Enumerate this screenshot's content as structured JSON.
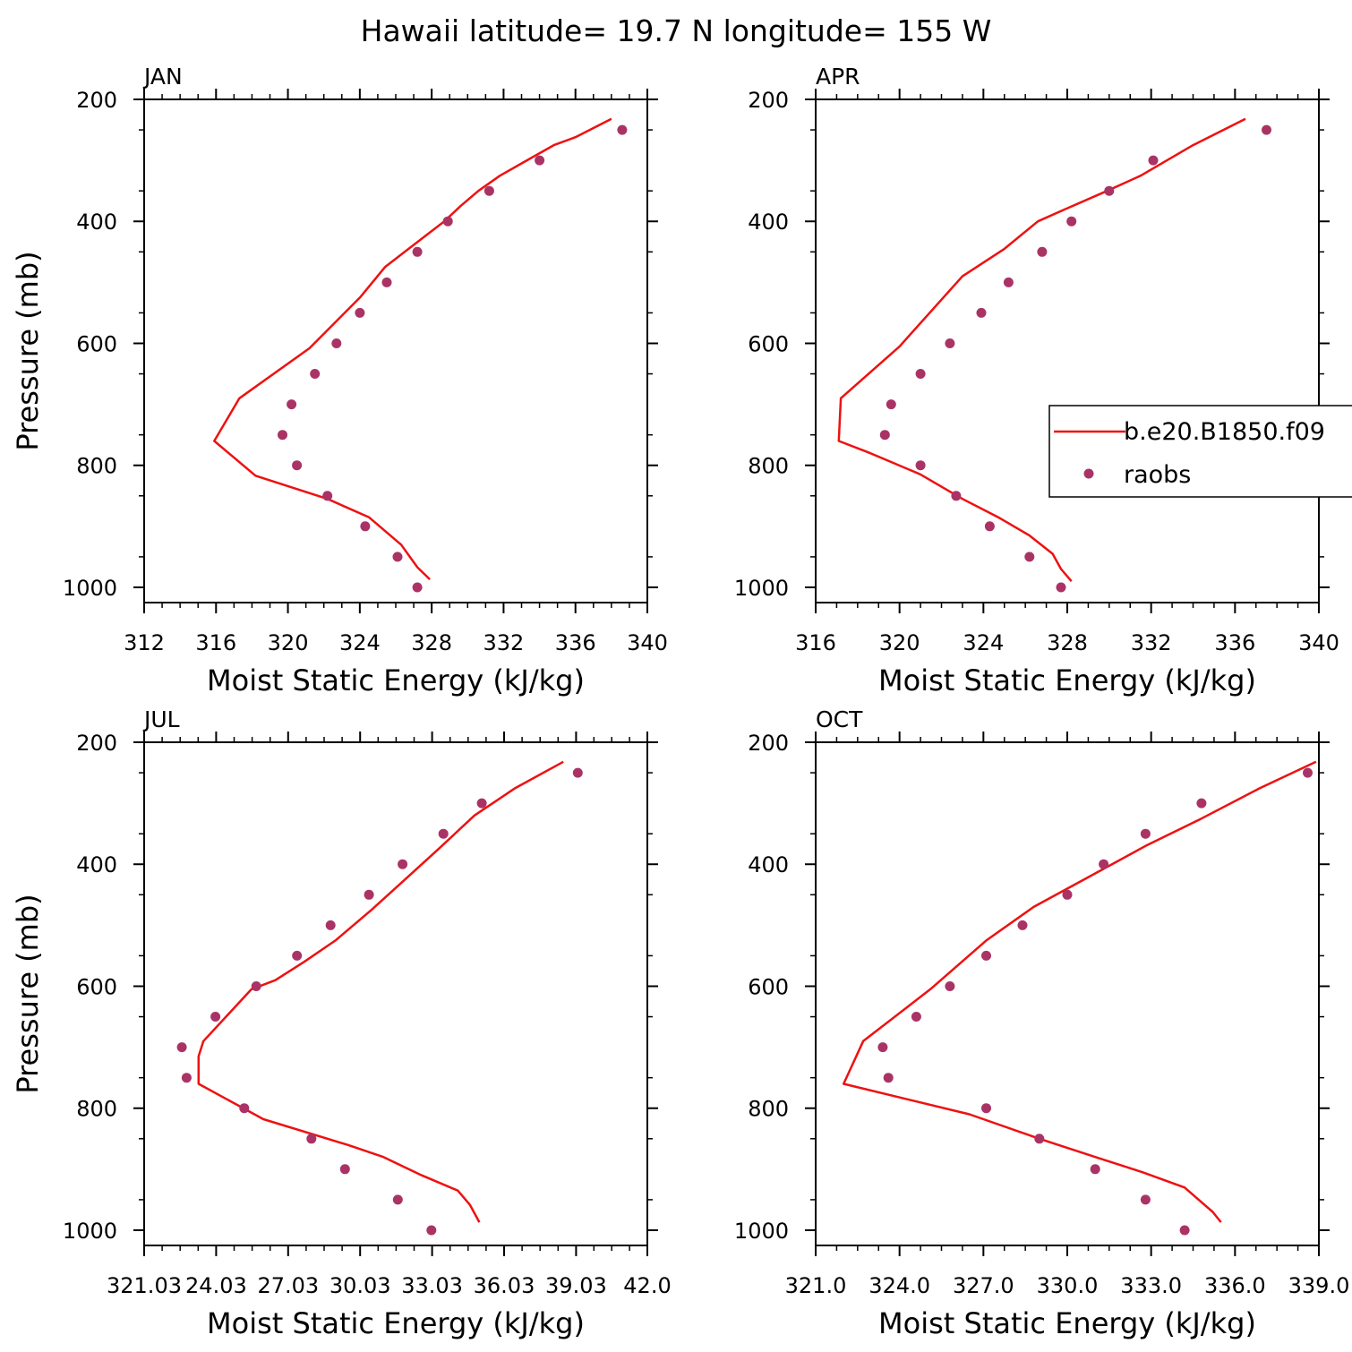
{
  "figure_title": "Hawaii  latitude= 19.7 N longitude= 155 W",
  "colors": {
    "model_line": "#ee1111",
    "obs_dots": "#aa3366"
  },
  "legend": {
    "line_label": "b.e20.B1850.f09",
    "dots_label": "raobs"
  },
  "chart_data": [
    {
      "type": "line",
      "title": "JAN",
      "xlabel": "Moist Static Energy (kJ/kg)",
      "ylabel": "Pressure (mb)",
      "xlim": [
        312,
        340
      ],
      "ylim": [
        200,
        1025
      ],
      "x_ticks": [
        312,
        316,
        320,
        324,
        328,
        332,
        336,
        340
      ],
      "x_tick_labels": [
        "312",
        "316",
        "320",
        "324",
        "328",
        "332",
        "336",
        "340"
      ],
      "y_ticks": [
        200,
        400,
        600,
        800,
        1000
      ],
      "y_tick_labels": [
        "200",
        "400",
        "600",
        "800",
        "1000"
      ],
      "series": [
        {
          "name": "b.e20.B1850.f09",
          "kind": "line",
          "x": [
            338.0,
            336.0,
            334.8,
            333.3,
            331.8,
            330.6,
            329.6,
            328.7,
            327.6,
            326.5,
            325.4,
            324.0,
            321.2,
            317.3,
            315.9,
            318.2,
            322.2,
            324.5,
            326.3,
            327.2,
            327.9
          ],
          "y": [
            232,
            262,
            275,
            300,
            325,
            350,
            375,
            400,
            425,
            450,
            475,
            525,
            608,
            690,
            760,
            817,
            855,
            885,
            930,
            967,
            987
          ]
        },
        {
          "name": "raobs",
          "kind": "scatter",
          "x": [
            338.6,
            334.0,
            331.2,
            328.9,
            327.2,
            325.5,
            324.0,
            322.7,
            321.5,
            320.2,
            319.7,
            320.5,
            322.2,
            324.3,
            326.1,
            327.2
          ],
          "y": [
            250,
            300,
            350,
            400,
            450,
            500,
            550,
            600,
            650,
            700,
            750,
            800,
            850,
            900,
            950,
            1000
          ]
        }
      ]
    },
    {
      "type": "line",
      "title": "APR",
      "xlabel": "Moist Static Energy (kJ/kg)",
      "ylabel": "",
      "xlim": [
        316,
        340
      ],
      "ylim": [
        200,
        1025
      ],
      "x_ticks": [
        316,
        320,
        324,
        328,
        332,
        336,
        340
      ],
      "x_tick_labels": [
        "316",
        "320",
        "324",
        "328",
        "332",
        "336",
        "340"
      ],
      "y_ticks": [
        200,
        400,
        600,
        800,
        1000
      ],
      "y_tick_labels": [
        "200",
        "400",
        "600",
        "800",
        "1000"
      ],
      "series": [
        {
          "name": "b.e20.B1850.f09",
          "kind": "line",
          "x": [
            336.5,
            334.0,
            331.5,
            329.9,
            327.9,
            326.6,
            325.0,
            323.0,
            320.0,
            317.2,
            317.1,
            318.6,
            321.0,
            323.0,
            324.7,
            326.2,
            327.3,
            327.7,
            328.2
          ],
          "y": [
            232,
            275,
            325,
            350,
            380,
            400,
            445,
            490,
            605,
            690,
            760,
            780,
            815,
            855,
            885,
            915,
            945,
            970,
            990
          ]
        },
        {
          "name": "raobs",
          "kind": "scatter",
          "x": [
            337.5,
            332.1,
            330.0,
            328.2,
            326.8,
            325.2,
            323.9,
            322.4,
            321.0,
            319.6,
            319.3,
            321.0,
            322.7,
            324.3,
            326.2,
            327.7
          ],
          "y": [
            250,
            300,
            350,
            400,
            450,
            500,
            550,
            600,
            650,
            700,
            750,
            800,
            850,
            900,
            950,
            1000
          ]
        }
      ]
    },
    {
      "type": "line",
      "title": "JUL",
      "xlabel": "Moist Static Energy (kJ/kg)",
      "ylabel": "Pressure (mb)",
      "xlim": [
        321.03,
        342.0
      ],
      "ylim": [
        200,
        1025
      ],
      "x_ticks": [
        321.03,
        324.03,
        327.03,
        330.03,
        333.03,
        336.03,
        339.03,
        342.0
      ],
      "x_tick_labels": [
        "321.03",
        "24.03",
        "27.03",
        "30.03",
        "33.03",
        "36.03",
        "39.03",
        "42.0"
      ],
      "y_ticks": [
        200,
        400,
        600,
        800,
        1000
      ],
      "y_tick_labels": [
        "200",
        "400",
        "600",
        "800",
        "1000"
      ],
      "series": [
        {
          "name": "b.e20.B1850.f09",
          "kind": "line",
          "x": [
            338.5,
            336.5,
            334.8,
            333.3,
            331.9,
            330.5,
            329.0,
            327.7,
            326.5,
            325.5,
            323.5,
            323.3,
            323.3,
            326.0,
            329.5,
            331.0,
            332.6,
            334.1,
            334.6,
            335.0
          ],
          "y": [
            232,
            275,
            320,
            375,
            425,
            475,
            525,
            560,
            590,
            605,
            690,
            715,
            760,
            818,
            860,
            880,
            910,
            935,
            958,
            987
          ]
        },
        {
          "name": "raobs",
          "kind": "scatter",
          "x": [
            339.1,
            335.1,
            333.5,
            331.8,
            330.4,
            328.8,
            327.4,
            325.7,
            324.0,
            322.6,
            322.8,
            325.2,
            328.0,
            329.4,
            331.6,
            333.0
          ],
          "y": [
            250,
            300,
            350,
            400,
            450,
            500,
            550,
            600,
            650,
            700,
            750,
            800,
            850,
            900,
            950,
            1000
          ]
        }
      ]
    },
    {
      "type": "line",
      "title": "OCT",
      "xlabel": "Moist Static Energy (kJ/kg)",
      "ylabel": "",
      "xlim": [
        321.0,
        339.0
      ],
      "ylim": [
        200,
        1025
      ],
      "x_ticks": [
        321.0,
        324.0,
        327.0,
        330.0,
        333.0,
        336.0,
        339.0
      ],
      "x_tick_labels": [
        "321.0",
        "324.0",
        "327.0",
        "330.0",
        "333.0",
        "336.0",
        "339.0"
      ],
      "y_ticks": [
        200,
        400,
        600,
        800,
        1000
      ],
      "y_tick_labels": [
        "200",
        "400",
        "600",
        "800",
        "1000"
      ],
      "series": [
        {
          "name": "b.e20.B1850.f09",
          "kind": "line",
          "x": [
            338.9,
            336.9,
            334.8,
            332.8,
            330.8,
            328.8,
            327.1,
            325.1,
            322.7,
            322.0,
            326.5,
            329.0,
            331.0,
            332.7,
            334.2,
            334.7,
            335.2,
            335.5
          ],
          "y": [
            232,
            275,
            325,
            370,
            420,
            470,
            525,
            605,
            690,
            760,
            810,
            850,
            880,
            905,
            930,
            950,
            970,
            987
          ]
        },
        {
          "name": "raobs",
          "kind": "scatter",
          "x": [
            338.6,
            334.8,
            332.8,
            331.3,
            330.0,
            328.4,
            327.1,
            325.8,
            324.6,
            323.4,
            323.6,
            327.1,
            329.0,
            331.0,
            332.8,
            334.2
          ],
          "y": [
            250,
            300,
            350,
            400,
            450,
            500,
            550,
            600,
            650,
            700,
            750,
            800,
            850,
            900,
            950,
            1000
          ]
        }
      ]
    }
  ]
}
